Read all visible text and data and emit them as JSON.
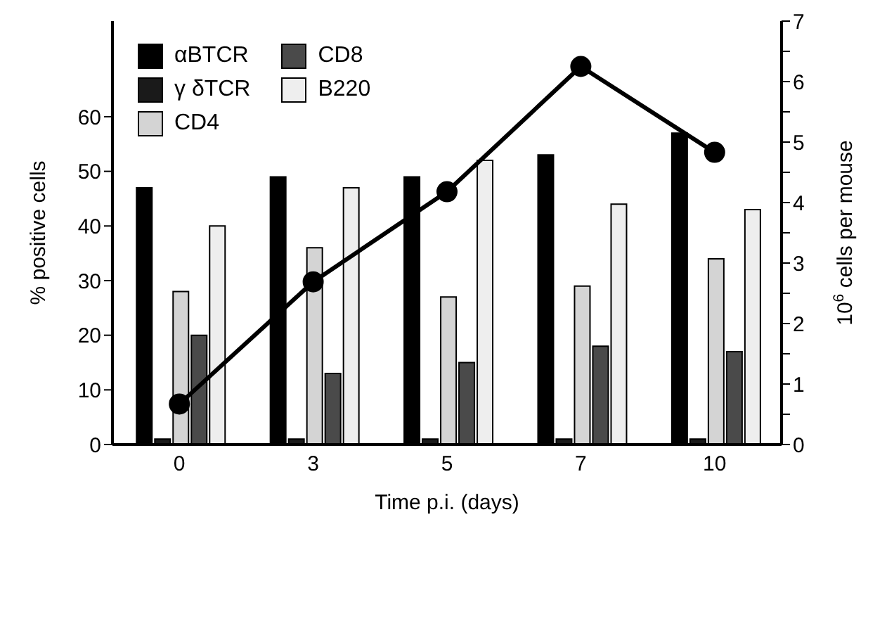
{
  "chart_data": {
    "type": "bar",
    "categories": [
      "0",
      "3",
      "5",
      "7",
      "10"
    ],
    "xlabel": "Time p.i. (days)",
    "ylabel": "% positive cells",
    "y2label": "10$^{6}$ cells per mouse",
    "ylim": [
      0,
      77.5
    ],
    "yticks": [
      0,
      10,
      20,
      30,
      40,
      50,
      60
    ],
    "y2lim": [
      0,
      7
    ],
    "y2ticks": [
      0,
      {
        "value": 0.5,
        "label": null
      },
      1,
      {
        "value": 1.5,
        "label": null
      },
      2,
      {
        "value": 2.5,
        "label": null
      },
      3,
      {
        "value": 3.5,
        "label": null
      },
      4,
      {
        "value": 4.5,
        "label": null
      },
      5,
      {
        "value": 5.5,
        "label": null
      },
      6,
      {
        "value": 6.5,
        "label": null
      },
      7
    ],
    "series": [
      {
        "name": "αBTCR",
        "color": "#000000",
        "values": [
          47,
          49,
          49,
          53,
          57
        ]
      },
      {
        "name": "γ δTCR",
        "color": "#1a1a1a",
        "values": [
          1,
          1,
          1,
          1,
          1
        ]
      },
      {
        "name": "CD4",
        "color": "#d4d4d4",
        "values": [
          28,
          36,
          27,
          29,
          34
        ]
      },
      {
        "name": "CD8",
        "color": "#4a4a4a",
        "values": [
          20,
          13,
          15,
          18,
          17
        ]
      },
      {
        "name": "B220",
        "color": "#eeeeee",
        "values": [
          40,
          47,
          52,
          44,
          43
        ]
      },
      {
        "type": "line",
        "axis": "y2",
        "color": "#000000",
        "marker": "circle",
        "values": [
          0.67,
          2.69,
          4.18,
          6.25,
          4.83
        ]
      }
    ],
    "legend": "top left",
    "grid": false
  }
}
